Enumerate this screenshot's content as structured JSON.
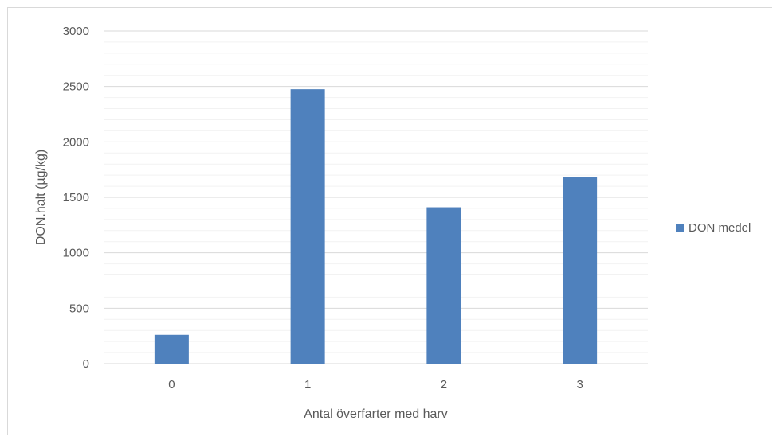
{
  "chart_data": {
    "type": "bar",
    "categories": [
      "0",
      "1",
      "2",
      "3"
    ],
    "series": [
      {
        "name": "DON medel",
        "values": [
          260,
          2475,
          1410,
          1685
        ],
        "color": "#4f81bd"
      }
    ],
    "xlabel": "Antal överfarter med harv",
    "ylabel": "DON.halt (µg/kg)",
    "ylim": [
      0,
      3000
    ],
    "yticks": [
      0,
      500,
      1000,
      1500,
      2000,
      2500,
      3000
    ],
    "major_gridlines": true,
    "minor_gridlines": true,
    "legend_position": "right"
  }
}
